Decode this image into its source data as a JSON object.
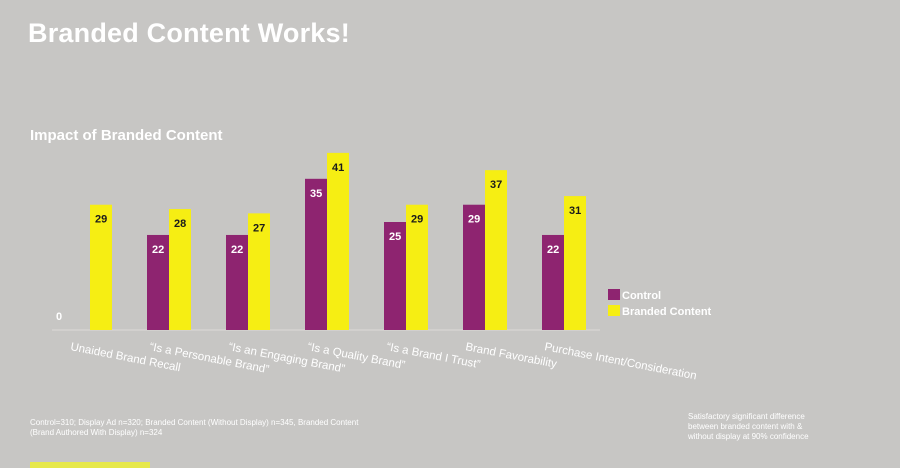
{
  "page": {
    "title": "Branded Content Works!"
  },
  "colors": {
    "control": "#8e2470",
    "branded": "#f6ee13",
    "background": "#c7c6c4"
  },
  "chart_data": {
    "type": "bar",
    "title": "Impact of Branded Content",
    "categories": [
      "Unaided Brand Recall",
      "“Is a Personable Brand”",
      "“Is an Engaging Brand”",
      "“Is a Quality Brand”",
      "“Is a Brand I Trust”",
      "Brand Favorability",
      "Purchase Intent/Consideration"
    ],
    "series": [
      {
        "name": "Control",
        "values": [
          0,
          22,
          22,
          35,
          25,
          29,
          22
        ]
      },
      {
        "name": "Branded Content",
        "values": [
          29,
          28,
          27,
          41,
          29,
          37,
          31
        ]
      }
    ],
    "ylim": [
      0,
      45
    ],
    "legend": "right",
    "grid": false
  },
  "footnotes": {
    "left_line1": "Control=310; Display Ad n=320; Branded Content (Without Display) n=345, Branded Content",
    "left_line2": "(Brand Authored With Display) n=324",
    "right_line1": "Satisfactory significant difference",
    "right_line2": "between branded content with &",
    "right_line3": "without display at 90% confidence"
  }
}
